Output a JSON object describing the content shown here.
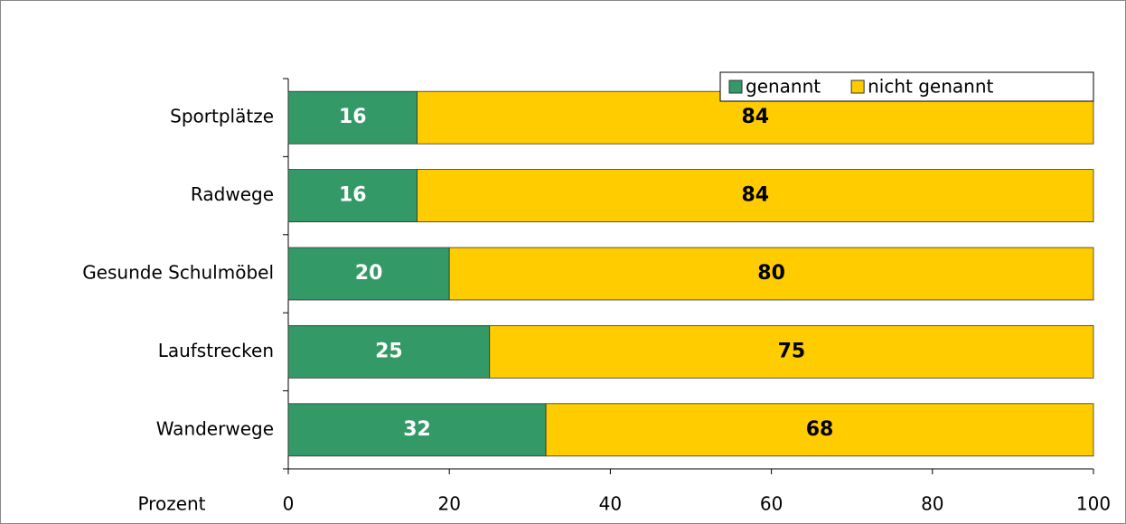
{
  "chart_data": {
    "type": "bar",
    "orientation": "horizontal",
    "stacked": true,
    "xlabel": "Prozent",
    "categories": [
      "Sportplätze",
      "Radwege",
      "Gesunde Schulmöbel",
      "Laufstrecken",
      "Wanderwege"
    ],
    "series": [
      {
        "name": "genannt",
        "color": "#339966",
        "label_color": "#ffffff",
        "values": [
          16,
          16,
          20,
          25,
          32
        ]
      },
      {
        "name": "nicht genannt",
        "color": "#ffcc00",
        "label_color": "#000000",
        "values": [
          84,
          84,
          80,
          75,
          68
        ]
      }
    ],
    "xlim": [
      0,
      100
    ],
    "xticks": [
      0,
      20,
      40,
      60,
      80,
      100
    ],
    "legend": "top-right"
  }
}
